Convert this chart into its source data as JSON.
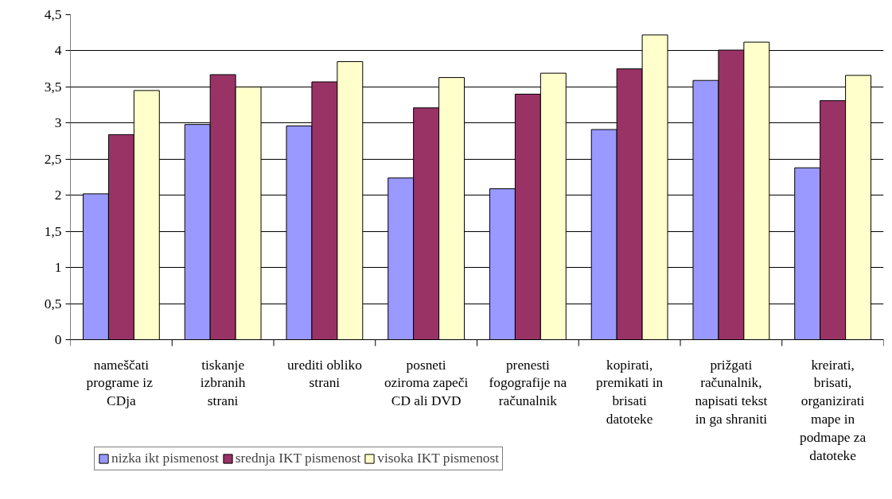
{
  "chart_data": {
    "type": "bar",
    "categories": [
      "nameščati programe  iz CDja",
      "tiskanje izbranih strani",
      "urediti obliko strani",
      "posneti oziroma zapeči CD ali DVD",
      "prenesti fogografije na računalnik",
      "kopirati, premikati in brisati datoteke",
      "prižgati računalnik, napisati tekst in ga shraniti",
      "kreirati, brisati, organizirati mape in podmape za datoteke"
    ],
    "series": [
      {
        "name": "nizka ikt pismenost",
        "color": "#9999ff",
        "values": [
          2.02,
          2.98,
          2.96,
          2.24,
          2.09,
          2.91,
          3.59,
          2.38
        ]
      },
      {
        "name": "srednja IKT pismenost",
        "color": "#993366",
        "values": [
          2.84,
          3.67,
          3.57,
          3.21,
          3.4,
          3.75,
          4.01,
          3.31
        ]
      },
      {
        "name": "visoka IKT pismenost",
        "color": "#ffffcc",
        "values": [
          3.45,
          3.5,
          3.85,
          3.63,
          3.69,
          4.22,
          4.12,
          3.66
        ]
      }
    ],
    "ylim": [
      0,
      4.5
    ],
    "yticks": [
      0,
      {
        "value": 0.5,
        "label": "0,5"
      },
      1,
      {
        "value": 1.5,
        "label": "1,5"
      },
      2,
      {
        "value": 2.5,
        "label": "2,5"
      },
      3,
      {
        "value": 3.5,
        "label": "3,5"
      },
      4,
      {
        "value": 4.5,
        "label": "4,5"
      }
    ],
    "grid": "y",
    "legend": "bottom left"
  }
}
